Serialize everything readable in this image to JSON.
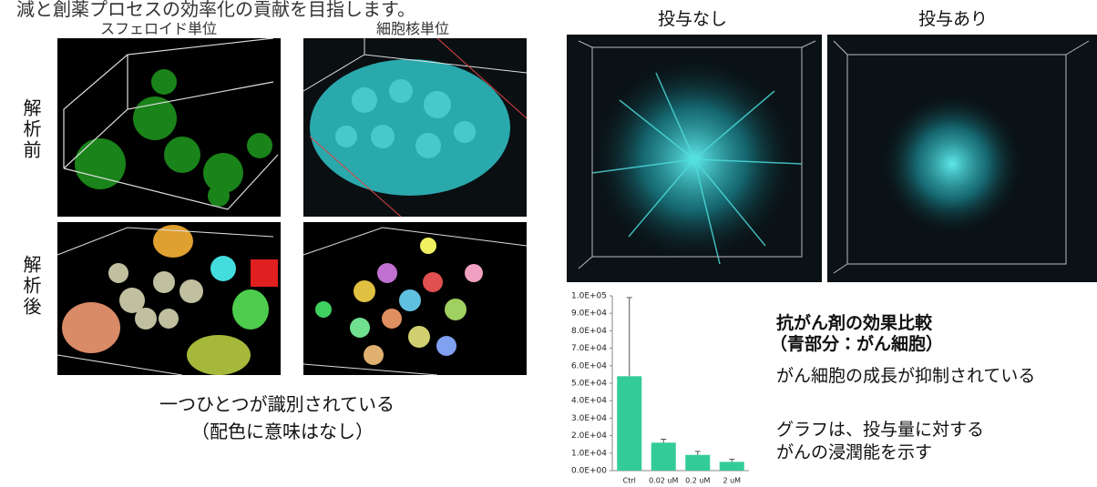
{
  "intro": "減と創薬プロセスの効率化の貢献を目指します。",
  "left_panel": {
    "col_headers": [
      "スフェロイド単位",
      "細胞核単位"
    ],
    "row_headers": [
      "解析前",
      "解析後"
    ],
    "caption": [
      "一つひとつが識別されている",
      "（配色に意味はなし）"
    ]
  },
  "right_panel": {
    "col_headers": [
      "投与なし",
      "投与あり"
    ],
    "notes": [
      "抗がん剤の効果比較",
      "（青部分：がん細胞）",
      "がん細胞の成長が抑制されている",
      "グラフは、投与量に対する",
      "がんの浸潤能を示す"
    ]
  },
  "chart_data": {
    "type": "bar",
    "categories": [
      "Ctrl",
      "0.02 uM",
      "0.2 uM",
      "2 uM"
    ],
    "values": [
      54000,
      16000,
      9000,
      5000
    ],
    "errors": [
      45000,
      2000,
      2000,
      1500
    ],
    "color": "#33cc99",
    "ylim": [
      0,
      100000
    ],
    "yticks": [
      {
        "value": 0,
        "label": "0.0E+00"
      },
      {
        "value": 10000,
        "label": "1.0E+04"
      },
      {
        "value": 20000,
        "label": "2.0E+04"
      },
      {
        "value": 30000,
        "label": "3.0E+04"
      },
      {
        "value": 40000,
        "label": "4.0E+04"
      },
      {
        "value": 50000,
        "label": "5.0E+04"
      },
      {
        "value": 60000,
        "label": "6.0E+04"
      },
      {
        "value": 70000,
        "label": "7.0E+04"
      },
      {
        "value": 80000,
        "label": "8.0E+04"
      },
      {
        "value": 90000,
        "label": "9.0E+04"
      },
      {
        "value": 100000,
        "label": "1.0E+05"
      }
    ]
  }
}
